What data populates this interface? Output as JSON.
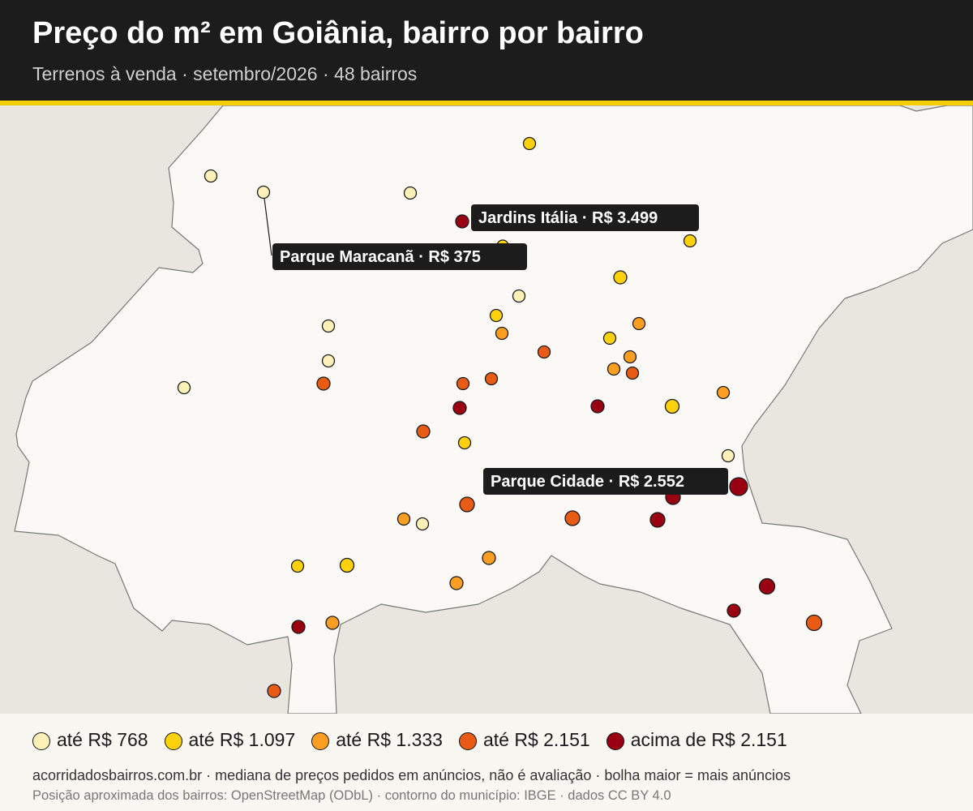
{
  "header": {
    "title": "Preço do m² em Goiânia, bairro por bairro",
    "subtitle": "Terrenos à venda · setembro/2026 · 48 bairros"
  },
  "colors": {
    "header_bg": "#1c1c1c",
    "accent_stripe": "#f7cf00",
    "municipality_fill": "#faf9f6",
    "outside_fill": "#e9e6df",
    "tier1": "#fdf1b8",
    "tier2": "#fdd20c",
    "tier3": "#fb9e22",
    "tier4": "#e85b14",
    "tier5": "#990011"
  },
  "legend": [
    {
      "label": "até R$ 768",
      "tier": "tier1"
    },
    {
      "label": "até R$ 1.097",
      "tier": "tier2"
    },
    {
      "label": "até R$ 1.333",
      "tier": "tier3"
    },
    {
      "label": "até R$ 2.151",
      "tier": "tier4"
    },
    {
      "label": "acima de R$ 2.151",
      "tier": "tier5"
    }
  ],
  "callouts": [
    {
      "label": "Jardins Itália · R$ 3.499"
    },
    {
      "label": "Parque Maracanã · R$ 375"
    },
    {
      "label": "Parque Cidade · R$ 2.552"
    }
  ],
  "footer": {
    "note": "acorridadosbairros.com.br · mediana de preços pedidos em anúncios, não é avaliação · bolha maior = mais anúncios",
    "attribution": "Posição aproximada dos bairros: OpenStreetMap (ODbL) · contorno do município: IBGE · dados CC BY 4.0"
  }
}
